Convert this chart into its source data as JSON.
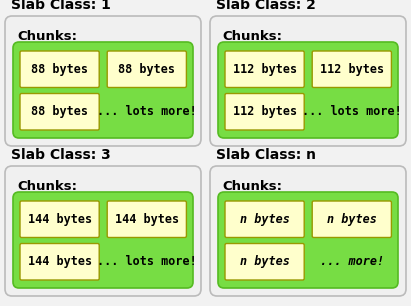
{
  "slab_classes": [
    {
      "title": "Slab Class: 1",
      "chunk_label": "88 bytes",
      "more_text": "... lots more!",
      "italic": false
    },
    {
      "title": "Slab Class: 2",
      "chunk_label": "112 bytes",
      "more_text": "... lots more!",
      "italic": false
    },
    {
      "title": "Slab Class: 3",
      "chunk_label": "144 bytes",
      "more_text": "... lots more!",
      "italic": false
    },
    {
      "title": "Slab Class: n",
      "chunk_label": "n bytes",
      "more_text": "... more!",
      "italic": true
    }
  ],
  "bg_color": "#f2f2f2",
  "outer_box_facecolor": "#f0f0f0",
  "outer_box_edgecolor": "#bbbbbb",
  "green_box_color": "#77dd44",
  "green_box_edge": "#55bb22",
  "chunk_box_color": "#ffffcc",
  "chunk_box_edge": "#999900",
  "title_fontsize": 10,
  "chunks_label_fontsize": 9.5,
  "chunk_fontsize": 8.5,
  "title_font": "DejaVu Sans",
  "chunk_font": "DejaVu Sans Mono"
}
